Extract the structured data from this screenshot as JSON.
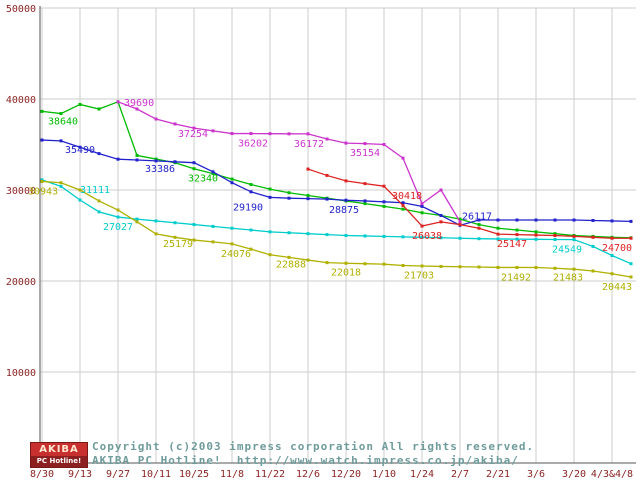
{
  "chart_data": {
    "type": "line",
    "title": "",
    "xlabel": "",
    "ylabel": "",
    "ylim": [
      0,
      50000
    ],
    "y_ticks": [
      10000,
      20000,
      30000,
      40000,
      50000
    ],
    "x_tick_labels": [
      "8/30",
      "9/13",
      "9/27",
      "10/11",
      "10/25",
      "11/8",
      "11/22",
      "12/6",
      "12/20",
      "1/10",
      "1/24",
      "2/7",
      "2/21",
      "3/6",
      "3/20",
      "4/3&4/8"
    ],
    "points_per_tick": 2,
    "n_points": 32,
    "grid_on": true,
    "legend": "none",
    "grid_color": "#cccccc",
    "axis_color": "#555555",
    "tick_color": "#8b2323",
    "series": [
      {
        "name": "series-green",
        "color": "#00bb00",
        "values": [
          38640,
          38400,
          39400,
          38900,
          39690,
          33800,
          33400,
          33000,
          32340,
          31800,
          31200,
          30600,
          30100,
          29700,
          29400,
          29100,
          28800,
          28500,
          28200,
          27900,
          27500,
          27200,
          26800,
          26200,
          25800,
          25600,
          25400,
          25200,
          25000,
          24900,
          24800,
          24750
        ]
      },
      {
        "name": "series-cyan",
        "color": "#00cccc",
        "values": [
          31111,
          30400,
          28900,
          27600,
          27027,
          26800,
          26600,
          26400,
          26200,
          26000,
          25800,
          25600,
          25400,
          25300,
          25200,
          25100,
          25000,
          24950,
          24900,
          24850,
          24800,
          24750,
          24700,
          24650,
          24620,
          24600,
          24580,
          24560,
          24549,
          23800,
          22800,
          21900
        ]
      },
      {
        "name": "series-olive",
        "color": "#b0b000",
        "values": [
          30943,
          30800,
          30000,
          28800,
          27800,
          26500,
          25179,
          24800,
          24500,
          24300,
          24076,
          23500,
          22888,
          22600,
          22300,
          22018,
          21950,
          21900,
          21850,
          21703,
          21650,
          21600,
          21570,
          21540,
          21492,
          21490,
          21483,
          21400,
          21300,
          21100,
          20800,
          20443
        ]
      },
      {
        "name": "series-blue",
        "color": "#2222cc",
        "values": [
          35490,
          35400,
          34700,
          34000,
          33386,
          33300,
          33200,
          33100,
          33000,
          32000,
          30800,
          29800,
          29190,
          29100,
          29050,
          29000,
          28875,
          28800,
          28700,
          28600,
          28200,
          27200,
          26117,
          26700,
          26700,
          26700,
          26700,
          26700,
          26700,
          26650,
          26600,
          26550
        ]
      },
      {
        "name": "series-magenta",
        "color": "#cc33cc",
        "values": [
          null,
          null,
          null,
          null,
          39690,
          38900,
          37800,
          37254,
          36800,
          36500,
          36202,
          36200,
          36190,
          36172,
          36170,
          35600,
          35154,
          35100,
          35000,
          33500,
          28500,
          30000,
          26500,
          null,
          null,
          null,
          null,
          null,
          null,
          null,
          null,
          null
        ]
      },
      {
        "name": "series-red",
        "color": "#dd2222",
        "values": [
          null,
          null,
          null,
          null,
          null,
          null,
          null,
          null,
          null,
          null,
          null,
          null,
          null,
          null,
          32300,
          31600,
          31000,
          30700,
          30418,
          28300,
          26038,
          26500,
          26200,
          25800,
          25147,
          25100,
          25050,
          25000,
          24900,
          24800,
          24700,
          24700
        ]
      }
    ],
    "labels": [
      {
        "text": "38640",
        "s": 0,
        "xi": 0,
        "pos": "below",
        "dx": 21
      },
      {
        "text": "35490",
        "s": 3,
        "xi": 0,
        "pos": "below",
        "dx": 38
      },
      {
        "text": "31111",
        "s": 1,
        "xi": 0,
        "pos": "below",
        "dx": 53
      },
      {
        "text": "30943",
        "s": 2,
        "xi": 0,
        "pos": "below",
        "dx": 1
      },
      {
        "text": "39690",
        "s": 4,
        "xi": 4,
        "pos": "right",
        "dx": 0
      },
      {
        "text": "27027",
        "s": 1,
        "xi": 4,
        "pos": "below",
        "dx": 0
      },
      {
        "text": "33386",
        "s": 3,
        "xi": 4,
        "pos": "below",
        "dx": 42
      },
      {
        "text": "37254",
        "s": 4,
        "xi": 7,
        "pos": "below",
        "dx": 18
      },
      {
        "text": "32340",
        "s": 0,
        "xi": 8,
        "pos": "below",
        "dx": 9
      },
      {
        "text": "25179",
        "s": 2,
        "xi": 6,
        "pos": "below",
        "dx": 22
      },
      {
        "text": "24076",
        "s": 2,
        "xi": 10,
        "pos": "below",
        "dx": 4
      },
      {
        "text": "36202",
        "s": 4,
        "xi": 10,
        "pos": "below",
        "dx": 21
      },
      {
        "text": "29190",
        "s": 3,
        "xi": 12,
        "pos": "below",
        "dx": -22
      },
      {
        "text": "36172",
        "s": 4,
        "xi": 13,
        "pos": "below",
        "dx": 20
      },
      {
        "text": "22888",
        "s": 2,
        "xi": 12,
        "pos": "below",
        "dx": 21
      },
      {
        "text": "28875",
        "s": 3,
        "xi": 16,
        "pos": "below",
        "dx": -2
      },
      {
        "text": "22018",
        "s": 2,
        "xi": 15,
        "pos": "below",
        "dx": 19
      },
      {
        "text": "35154",
        "s": 4,
        "xi": 16,
        "pos": "below",
        "dx": 19
      },
      {
        "text": "30418",
        "s": 5,
        "xi": 18,
        "pos": "below",
        "dx": 23
      },
      {
        "text": "26038",
        "s": 5,
        "xi": 20,
        "pos": "below",
        "dx": 5
      },
      {
        "text": "21703",
        "s": 2,
        "xi": 19,
        "pos": "below",
        "dx": 16
      },
      {
        "text": "26117",
        "s": 3,
        "xi": 22,
        "pos": "above",
        "dx": 17
      },
      {
        "text": "25147",
        "s": 5,
        "xi": 24,
        "pos": "below",
        "dx": 14
      },
      {
        "text": "21492",
        "s": 2,
        "xi": 24,
        "pos": "below",
        "dx": 18
      },
      {
        "text": "24549",
        "s": 1,
        "xi": 28,
        "pos": "below",
        "dx": -7
      },
      {
        "text": "21483",
        "s": 2,
        "xi": 26,
        "pos": "below",
        "dx": 32
      },
      {
        "text": "24700",
        "s": 5,
        "xi": 31,
        "pos": "below",
        "dx": -14
      },
      {
        "text": "20443",
        "s": 2,
        "xi": 31,
        "pos": "below",
        "dx": -14
      }
    ]
  },
  "footer": {
    "copyright": "Copyright (c)2003 impress corporation All rights reserved.",
    "site": "AKIBA PC Hotline!  http://www.watch.impress.co.jp/akiba/",
    "logo_top": "AKIBA",
    "logo_bottom": "PC Hotline!"
  }
}
